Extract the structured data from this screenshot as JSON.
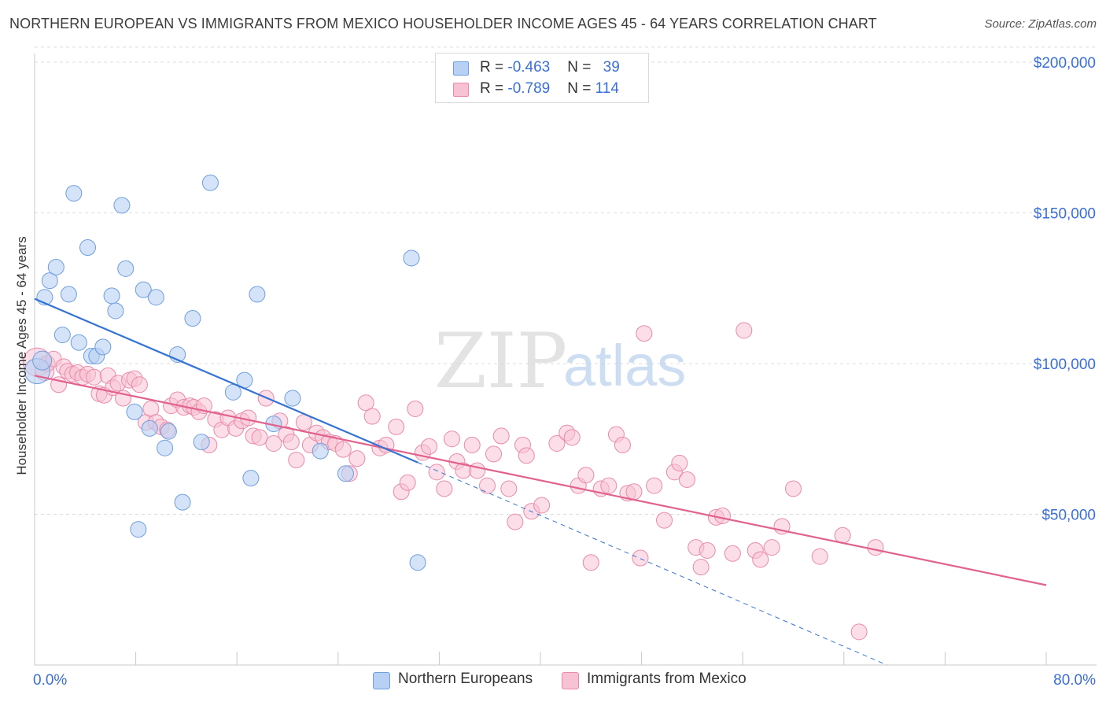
{
  "header": {
    "title": "NORTHERN EUROPEAN VS IMMIGRANTS FROM MEXICO HOUSEHOLDER INCOME AGES 45 - 64 YEARS CORRELATION CHART",
    "source": "Source: ZipAtlas.com"
  },
  "watermark": {
    "zip": "ZIP",
    "atlas": "atlas"
  },
  "legend": {
    "rows": [
      {
        "r_label": "R = ",
        "r_value": "-0.463",
        "n_label": "N = ",
        "n_value": "39"
      },
      {
        "r_label": "R = ",
        "r_value": "-0.789",
        "n_label": "N = ",
        "n_value": "114"
      }
    ]
  },
  "colors": {
    "northern_fill": "#b8d0f3",
    "northern_stroke": "#6f9edd",
    "northern_line": "#3472d4",
    "mexico_fill": "#f7c3d4",
    "mexico_stroke": "#e98aaa",
    "mexico_line": "#e2628e",
    "grid": "#dcdcdc",
    "tick_label": "#3a6fd8"
  },
  "chart_data": {
    "type": "scatter",
    "title": "NORTHERN EUROPEAN VS IMMIGRANTS FROM MEXICO HOUSEHOLDER INCOME AGES 45 - 64 YEARS CORRELATION CHART",
    "xlabel": "",
    "ylabel": "Householder Income Ages 45 - 64 years",
    "xlim": [
      0,
      80
    ],
    "ylim": [
      0,
      210000
    ],
    "x_tick_labels": [
      "0.0%",
      "80.0%"
    ],
    "y_ticks": [
      50000,
      100000,
      150000,
      200000
    ],
    "y_tick_labels": [
      "$50,000",
      "$100,000",
      "$150,000",
      "$200,000"
    ],
    "grid": true,
    "legend_position": "bottom-center",
    "series": [
      {
        "name": "Northern Europeans",
        "r": -0.463,
        "n": 39,
        "trend": {
          "x": [
            0,
            30.3
          ],
          "y": [
            121500,
            67200
          ]
        },
        "trend_extension": {
          "x": [
            30.3,
            67.4
          ],
          "y": [
            67200,
            0
          ]
        },
        "points": [
          [
            0.2,
            97500,
            16
          ],
          [
            0.6,
            101000,
            12
          ],
          [
            0.8,
            122000,
            10
          ],
          [
            1.2,
            127500,
            10
          ],
          [
            1.7,
            132000,
            10
          ],
          [
            2.2,
            109500,
            10
          ],
          [
            2.7,
            123000,
            10
          ],
          [
            3.1,
            156500,
            10
          ],
          [
            3.5,
            107000,
            10
          ],
          [
            4.2,
            138500,
            10
          ],
          [
            4.5,
            102500,
            10
          ],
          [
            4.9,
            102500,
            10
          ],
          [
            5.4,
            105500,
            10
          ],
          [
            6.1,
            122500,
            10
          ],
          [
            6.4,
            117500,
            10
          ],
          [
            6.9,
            152500,
            10
          ],
          [
            7.2,
            131500,
            10
          ],
          [
            7.9,
            84000,
            10
          ],
          [
            8.2,
            45000,
            10
          ],
          [
            8.6,
            124500,
            10
          ],
          [
            9.1,
            78500,
            10
          ],
          [
            9.6,
            122000,
            10
          ],
          [
            10.3,
            72000,
            10
          ],
          [
            10.6,
            77500,
            10
          ],
          [
            11.3,
            103000,
            10
          ],
          [
            11.7,
            54000,
            10
          ],
          [
            12.5,
            115000,
            10
          ],
          [
            13.2,
            74000,
            10
          ],
          [
            13.9,
            160000,
            10
          ],
          [
            15.7,
            90500,
            10
          ],
          [
            16.6,
            94500,
            10
          ],
          [
            17.1,
            62000,
            10
          ],
          [
            17.6,
            123000,
            10
          ],
          [
            18.9,
            80000,
            10
          ],
          [
            20.4,
            88500,
            10
          ],
          [
            22.6,
            71000,
            10
          ],
          [
            24.6,
            63500,
            10
          ],
          [
            29.8,
            135000,
            10
          ],
          [
            30.3,
            34000,
            10
          ]
        ]
      },
      {
        "name": "Immigrants from Mexico",
        "r": -0.789,
        "n": 114,
        "trend": {
          "x": [
            0,
            80
          ],
          "y": [
            96000,
            26500
          ]
        },
        "points": [
          [
            0.2,
            100500,
            18
          ],
          [
            0.8,
            97500,
            12
          ],
          [
            1.0,
            100000,
            10
          ],
          [
            1.5,
            101500,
            10
          ],
          [
            1.9,
            93000,
            10
          ],
          [
            2.3,
            99000,
            10
          ],
          [
            2.6,
            97500,
            10
          ],
          [
            3.0,
            96500,
            10
          ],
          [
            3.4,
            97000,
            10
          ],
          [
            3.8,
            95500,
            10
          ],
          [
            4.2,
            96500,
            10
          ],
          [
            4.7,
            95500,
            10
          ],
          [
            5.1,
            90000,
            10
          ],
          [
            5.5,
            89500,
            10
          ],
          [
            5.8,
            96000,
            10
          ],
          [
            6.2,
            92000,
            10
          ],
          [
            6.6,
            93500,
            10
          ],
          [
            7.0,
            88500,
            10
          ],
          [
            7.5,
            94500,
            10
          ],
          [
            7.9,
            95000,
            10
          ],
          [
            8.3,
            93000,
            10
          ],
          [
            8.8,
            80500,
            10
          ],
          [
            9.2,
            85000,
            10
          ],
          [
            9.6,
            80500,
            10
          ],
          [
            10.0,
            79000,
            10
          ],
          [
            10.5,
            78000,
            10
          ],
          [
            10.8,
            86000,
            10
          ],
          [
            11.3,
            88000,
            10
          ],
          [
            11.8,
            85500,
            10
          ],
          [
            12.3,
            86000,
            10
          ],
          [
            12.6,
            85500,
            10
          ],
          [
            13.0,
            84000,
            10
          ],
          [
            13.4,
            86000,
            10
          ],
          [
            13.8,
            73000,
            10
          ],
          [
            14.3,
            81500,
            10
          ],
          [
            14.8,
            78000,
            10
          ],
          [
            15.3,
            82000,
            10
          ],
          [
            15.9,
            78500,
            10
          ],
          [
            16.4,
            81000,
            10
          ],
          [
            16.9,
            82000,
            10
          ],
          [
            17.3,
            76000,
            10
          ],
          [
            17.8,
            75500,
            10
          ],
          [
            18.3,
            88500,
            10
          ],
          [
            18.9,
            73500,
            10
          ],
          [
            19.4,
            81000,
            10
          ],
          [
            19.9,
            76500,
            10
          ],
          [
            20.3,
            74000,
            10
          ],
          [
            20.7,
            68000,
            10
          ],
          [
            21.3,
            80500,
            10
          ],
          [
            21.8,
            73000,
            10
          ],
          [
            22.3,
            77000,
            10
          ],
          [
            22.8,
            75500,
            10
          ],
          [
            23.3,
            74000,
            10
          ],
          [
            23.8,
            73500,
            10
          ],
          [
            24.4,
            71500,
            10
          ],
          [
            24.9,
            63500,
            10
          ],
          [
            25.5,
            68500,
            10
          ],
          [
            26.2,
            87000,
            10
          ],
          [
            26.7,
            82500,
            10
          ],
          [
            27.3,
            72000,
            10
          ],
          [
            27.8,
            73000,
            10
          ],
          [
            28.6,
            79000,
            10
          ],
          [
            29.0,
            57500,
            10
          ],
          [
            29.5,
            60500,
            10
          ],
          [
            30.1,
            85000,
            10
          ],
          [
            30.7,
            70500,
            10
          ],
          [
            31.2,
            72500,
            10
          ],
          [
            31.8,
            64000,
            10
          ],
          [
            32.4,
            58500,
            10
          ],
          [
            33.0,
            75000,
            10
          ],
          [
            33.4,
            67500,
            10
          ],
          [
            33.9,
            64500,
            10
          ],
          [
            34.6,
            73000,
            10
          ],
          [
            35.0,
            64500,
            10
          ],
          [
            35.8,
            59500,
            10
          ],
          [
            36.3,
            70000,
            10
          ],
          [
            36.9,
            76000,
            10
          ],
          [
            37.5,
            58500,
            10
          ],
          [
            38.0,
            47500,
            10
          ],
          [
            38.6,
            73000,
            10
          ],
          [
            38.9,
            69500,
            10
          ],
          [
            39.3,
            51000,
            10
          ],
          [
            40.1,
            53000,
            10
          ],
          [
            41.3,
            73500,
            10
          ],
          [
            42.1,
            77000,
            10
          ],
          [
            42.5,
            75500,
            10
          ],
          [
            43.0,
            59500,
            10
          ],
          [
            43.6,
            63000,
            10
          ],
          [
            44.0,
            34000,
            10
          ],
          [
            44.8,
            58500,
            10
          ],
          [
            45.4,
            59500,
            10
          ],
          [
            46.0,
            76500,
            10
          ],
          [
            46.5,
            73000,
            10
          ],
          [
            46.9,
            57000,
            10
          ],
          [
            47.4,
            57500,
            10
          ],
          [
            47.9,
            35500,
            10
          ],
          [
            48.2,
            110000,
            10
          ],
          [
            49.0,
            59500,
            10
          ],
          [
            49.8,
            48000,
            10
          ],
          [
            50.6,
            64000,
            10
          ],
          [
            51.0,
            67000,
            10
          ],
          [
            51.6,
            61500,
            10
          ],
          [
            52.3,
            39000,
            10
          ],
          [
            52.7,
            32500,
            10
          ],
          [
            53.2,
            38000,
            10
          ],
          [
            53.9,
            49000,
            10
          ],
          [
            54.4,
            49500,
            10
          ],
          [
            55.2,
            37000,
            10
          ],
          [
            56.1,
            111000,
            10
          ],
          [
            57.0,
            38000,
            10
          ],
          [
            57.4,
            35000,
            10
          ],
          [
            58.3,
            39000,
            10
          ],
          [
            59.1,
            46000,
            10
          ],
          [
            60.0,
            58500,
            10
          ],
          [
            62.1,
            36000,
            10
          ],
          [
            63.9,
            43000,
            10
          ],
          [
            65.2,
            11000,
            10
          ],
          [
            66.5,
            39000,
            10
          ]
        ]
      }
    ]
  },
  "bottom_legend": {
    "items": [
      {
        "label": "Northern Europeans"
      },
      {
        "label": "Immigrants from Mexico"
      }
    ]
  }
}
